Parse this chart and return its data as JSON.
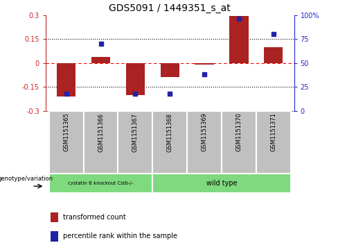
{
  "title": "GDS5091 / 1449351_s_at",
  "samples": [
    "GSM1151365",
    "GSM1151366",
    "GSM1151367",
    "GSM1151368",
    "GSM1151369",
    "GSM1151370",
    "GSM1151371"
  ],
  "red_values": [
    -0.21,
    0.04,
    -0.2,
    -0.09,
    -0.01,
    0.295,
    0.1
  ],
  "blue_values": [
    18,
    70,
    18,
    18,
    38,
    96,
    80
  ],
  "ylim_left": [
    -0.3,
    0.3
  ],
  "ylim_right": [
    0,
    100
  ],
  "yticks_left": [
    -0.3,
    -0.15,
    0,
    0.15,
    0.3
  ],
  "yticks_right": [
    0,
    25,
    50,
    75,
    100
  ],
  "ytick_labels_left": [
    "-0.3",
    "-0.15",
    "0",
    "0.15",
    "0.3"
  ],
  "ytick_labels_right": [
    "0",
    "25",
    "50",
    "75",
    "100%"
  ],
  "bar_color": "#AA2222",
  "dot_color": "#2222AA",
  "group1_label": "cystatin B knockout Cstb-/-",
  "group2_label": "wild type",
  "group1_indices": [
    0,
    1,
    2
  ],
  "group2_indices": [
    3,
    4,
    5,
    6
  ],
  "group_color": "#7FD97F",
  "legend_red": "transformed count",
  "legend_blue": "percentile rank within the sample",
  "genotype_label": "genotype/variation",
  "left_axis_color": "#CC2222",
  "right_axis_color": "#2222CC",
  "bar_width": 0.55,
  "sample_box_color": "#C0C0C0",
  "sample_box_edge": "#888888"
}
